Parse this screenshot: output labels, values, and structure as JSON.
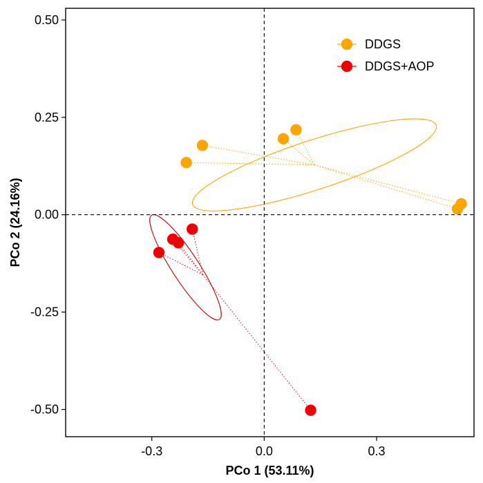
{
  "chart_data": {
    "type": "scatter",
    "title": "",
    "xlabel": "PCo 1 (53.11%)",
    "ylabel": "PCo 2 (24.16%)",
    "xlim": [
      -0.53,
      0.56
    ],
    "ylim": [
      -0.57,
      0.53
    ],
    "xticks": [
      -0.3,
      0.0,
      0.3
    ],
    "xtick_labels": [
      "-0.3",
      "0.0",
      "0.3"
    ],
    "yticks": [
      -0.5,
      -0.25,
      0.0,
      0.25,
      0.5
    ],
    "ytick_labels": [
      "-0.50",
      "-0.25",
      "0.00",
      "0.25",
      "0.50"
    ],
    "reference_lines": {
      "x": 0,
      "y": 0,
      "style": "dashed"
    },
    "grid": false,
    "legend_position": "top-right",
    "series": [
      {
        "name": "DDGS",
        "color": "#FFA500",
        "points": [
          {
            "x": -0.165,
            "y": 0.178
          },
          {
            "x": -0.208,
            "y": 0.134
          },
          {
            "x": 0.051,
            "y": 0.195
          },
          {
            "x": 0.085,
            "y": 0.218
          },
          {
            "x": 0.516,
            "y": 0.015
          },
          {
            "x": 0.526,
            "y": 0.028
          }
        ],
        "centroid": {
          "x": 0.134,
          "y": 0.128
        },
        "ellipse": {
          "cx": 0.134,
          "cy": 0.128,
          "rx": 0.342,
          "ry": 0.066,
          "angle_deg": -18
        }
      },
      {
        "name": "DDGS+AOP",
        "color": "#EE0000",
        "points": [
          {
            "x": -0.192,
            "y": -0.037
          },
          {
            "x": -0.244,
            "y": -0.063
          },
          {
            "x": -0.229,
            "y": -0.072
          },
          {
            "x": -0.281,
            "y": -0.097
          },
          {
            "x": 0.124,
            "y": -0.502
          }
        ],
        "centroid": {
          "x": -0.164,
          "y": -0.154
        },
        "ellipse": {
          "cx": -0.21,
          "cy": -0.135,
          "rx": 0.166,
          "ry": 0.036,
          "angle_deg": 57
        }
      }
    ]
  }
}
